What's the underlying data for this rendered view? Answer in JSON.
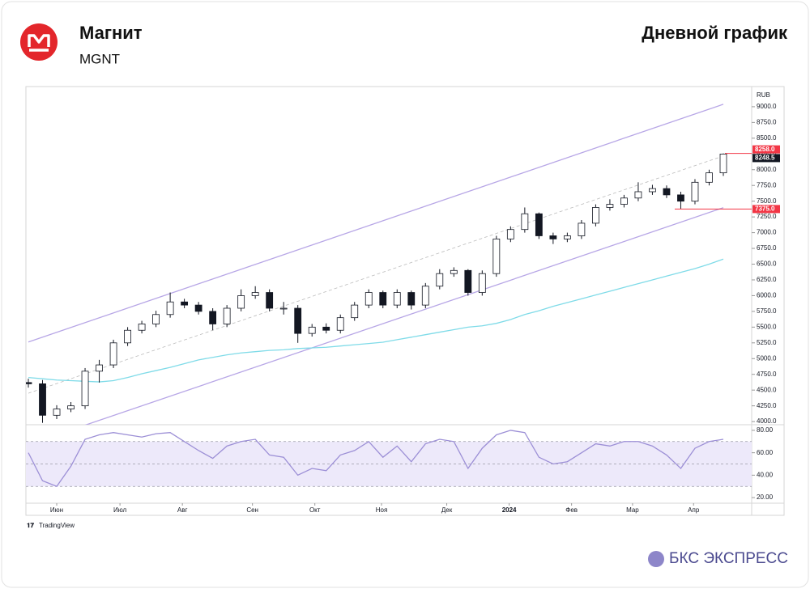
{
  "header": {
    "title": "Магнит",
    "ticker": "MGNT",
    "chart_kind": "Дневной график"
  },
  "footer": {
    "source": "TradingView",
    "brand": "БКС ЭКСПРЕСС"
  },
  "chart_data": [
    {
      "type": "candlestick",
      "currency": "RUB",
      "xlim": [
        0,
        49
      ],
      "ylim": [
        3950,
        9320
      ],
      "up_color": "#ffffff",
      "down_color": "#131722",
      "values": [
        [
          4620,
          4680,
          4540,
          4600
        ],
        [
          4600,
          4660,
          3980,
          4100
        ],
        [
          4100,
          4260,
          4040,
          4200
        ],
        [
          4200,
          4310,
          4150,
          4250
        ],
        [
          4250,
          4850,
          4200,
          4800
        ],
        [
          4800,
          4980,
          4620,
          4900
        ],
        [
          4900,
          5300,
          4850,
          5250
        ],
        [
          5250,
          5500,
          5200,
          5450
        ],
        [
          5450,
          5600,
          5400,
          5550
        ],
        [
          5550,
          5760,
          5500,
          5700
        ],
        [
          5700,
          6050,
          5650,
          5900
        ],
        [
          5900,
          5950,
          5800,
          5850
        ],
        [
          5850,
          5900,
          5700,
          5750
        ],
        [
          5750,
          5800,
          5450,
          5550
        ],
        [
          5550,
          5850,
          5500,
          5800
        ],
        [
          5800,
          6100,
          5750,
          6000
        ],
        [
          6000,
          6150,
          5950,
          6050
        ],
        [
          6050,
          6100,
          5750,
          5800
        ],
        [
          5800,
          5900,
          5700,
          5800
        ],
        [
          5800,
          5850,
          5250,
          5400
        ],
        [
          5400,
          5550,
          5350,
          5500
        ],
        [
          5500,
          5560,
          5400,
          5450
        ],
        [
          5450,
          5700,
          5400,
          5650
        ],
        [
          5650,
          5900,
          5600,
          5850
        ],
        [
          5850,
          6100,
          5800,
          6050
        ],
        [
          6050,
          6080,
          5800,
          5850
        ],
        [
          5850,
          6100,
          5800,
          6050
        ],
        [
          6050,
          6080,
          5780,
          5850
        ],
        [
          5850,
          6200,
          5800,
          6150
        ],
        [
          6150,
          6420,
          6100,
          6350
        ],
        [
          6350,
          6450,
          6300,
          6400
        ],
        [
          6400,
          6420,
          6000,
          6050
        ],
        [
          6050,
          6400,
          6000,
          6350
        ],
        [
          6350,
          6950,
          6300,
          6900
        ],
        [
          6900,
          7100,
          6850,
          7050
        ],
        [
          7050,
          7400,
          7000,
          7300
        ],
        [
          7300,
          7320,
          6900,
          6950
        ],
        [
          6950,
          7000,
          6820,
          6900
        ],
        [
          6900,
          7000,
          6850,
          6950
        ],
        [
          6950,
          7200,
          6900,
          7150
        ],
        [
          7150,
          7450,
          7100,
          7400
        ],
        [
          7400,
          7530,
          7350,
          7450
        ],
        [
          7450,
          7600,
          7400,
          7550
        ],
        [
          7550,
          7800,
          7500,
          7650
        ],
        [
          7650,
          7760,
          7600,
          7700
        ],
        [
          7700,
          7750,
          7550,
          7600
        ],
        [
          7600,
          7650,
          7375,
          7500
        ],
        [
          7500,
          7850,
          7450,
          7800
        ],
        [
          7800,
          8000,
          7750,
          7950
        ],
        [
          7950,
          8258,
          7900,
          8248.5
        ]
      ],
      "ma_color": "#7fdbe8",
      "ma_values": [
        4700,
        4680,
        4660,
        4650,
        4640,
        4630,
        4650,
        4700,
        4760,
        4810,
        4860,
        4920,
        4980,
        5020,
        5060,
        5090,
        5110,
        5130,
        5140,
        5160,
        5170,
        5180,
        5200,
        5220,
        5240,
        5260,
        5300,
        5340,
        5380,
        5420,
        5460,
        5500,
        5520,
        5560,
        5620,
        5700,
        5760,
        5830,
        5890,
        5950,
        6010,
        6070,
        6130,
        6190,
        6250,
        6310,
        6370,
        6430,
        6500,
        6580
      ],
      "channel": {
        "color": "#b7a6e6",
        "upper": [
          5263,
          9039
        ],
        "middle": [
          4450,
          8218
        ],
        "lower": [
          3636,
          7397
        ]
      },
      "yticks": [
        {
          "value": 4000,
          "label": "4000.0"
        },
        {
          "value": 4250,
          "label": "4250.0"
        },
        {
          "value": 4500,
          "label": "4500.0"
        },
        {
          "value": 4750,
          "label": "4750.0"
        },
        {
          "value": 5000,
          "label": "5000.0"
        },
        {
          "value": 5250,
          "label": "5250.0"
        },
        {
          "value": 5500,
          "label": "5500.0"
        },
        {
          "value": 5750,
          "label": "5750.0"
        },
        {
          "value": 6000,
          "label": "6000.0"
        },
        {
          "value": 6250,
          "label": "6250.0"
        },
        {
          "value": 6500,
          "label": "6500.0"
        },
        {
          "value": 6750,
          "label": "6750.0"
        },
        {
          "value": 7000,
          "label": "7000.0"
        },
        {
          "value": 7250,
          "label": "7250.0"
        },
        {
          "value": 7500,
          "label": "7500.0"
        },
        {
          "value": 7750,
          "label": "7750.0"
        },
        {
          "value": 8000,
          "label": "8000.0"
        },
        {
          "value": 8250,
          "label": "8250.0"
        },
        {
          "value": 8500,
          "label": "8500.0"
        },
        {
          "value": 8750,
          "label": "8750.0"
        },
        {
          "value": 9000,
          "label": "9000.0"
        }
      ],
      "price_labels": [
        {
          "value": 8258,
          "label": "8258.0",
          "color": "#f23645"
        },
        {
          "value": 8248.5,
          "label": "8248.5",
          "color": "#131722"
        },
        {
          "value": 7375,
          "label": "7375.0",
          "color": "#f23645"
        }
      ]
    },
    {
      "type": "line",
      "xlim": [
        0,
        49
      ],
      "ylim": [
        15,
        85
      ],
      "color": "#9c8fd6",
      "band": [
        30,
        70
      ],
      "levels": [
        30,
        50,
        70
      ],
      "values": [
        60,
        35,
        30,
        48,
        72,
        76,
        78,
        76,
        74,
        77,
        78,
        70,
        62,
        55,
        66,
        70,
        72,
        58,
        56,
        40,
        46,
        44,
        58,
        62,
        70,
        56,
        66,
        52,
        68,
        72,
        70,
        46,
        64,
        76,
        80,
        78,
        56,
        50,
        52,
        60,
        68,
        66,
        70,
        70,
        66,
        58,
        46,
        64,
        70,
        72
      ],
      "yticks": [
        {
          "value": 20,
          "label": "20.00"
        },
        {
          "value": 40,
          "label": "40.00"
        },
        {
          "value": 60,
          "label": "60.00"
        },
        {
          "value": 80,
          "label": "80.00"
        }
      ],
      "xticks": [
        {
          "value": 2,
          "label": "Июн"
        },
        {
          "value": 6.46,
          "label": "Июл"
        },
        {
          "value": 10.86,
          "label": "Авг"
        },
        {
          "value": 15.8,
          "label": "Сен"
        },
        {
          "value": 20.2,
          "label": "Окт"
        },
        {
          "value": 24.9,
          "label": "Ноя"
        },
        {
          "value": 29.5,
          "label": "Дек"
        },
        {
          "value": 33.9,
          "label": "2024"
        },
        {
          "value": 38.3,
          "label": "Фев"
        },
        {
          "value": 42.6,
          "label": "Мар"
        },
        {
          "value": 46.9,
          "label": "Апр"
        }
      ]
    }
  ]
}
